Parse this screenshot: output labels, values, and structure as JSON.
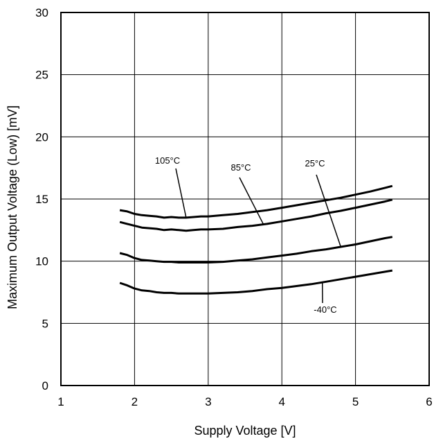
{
  "chart_data": {
    "type": "line",
    "xlabel": "Supply Voltage [V]",
    "ylabel": "Maximum Output Voltage (Low) [mV]",
    "xlim": [
      1,
      6
    ],
    "ylim": [
      0,
      30
    ],
    "x_ticks": [
      "1",
      "2",
      "3",
      "4",
      "5",
      "6"
    ],
    "y_ticks": [
      "0",
      "5",
      "10",
      "15",
      "20",
      "25",
      "30"
    ],
    "grid": true,
    "series": [
      {
        "name": "105°C",
        "x": [
          1.8,
          1.9,
          2.0,
          2.1,
          2.2,
          2.3,
          2.4,
          2.5,
          2.6,
          2.7,
          2.8,
          2.9,
          3.0,
          3.2,
          3.4,
          3.6,
          3.8,
          4.0,
          4.2,
          4.4,
          4.6,
          4.8,
          5.0,
          5.2,
          5.4,
          5.5
        ],
        "y": [
          14.1,
          14.0,
          13.8,
          13.7,
          13.65,
          13.6,
          13.5,
          13.55,
          13.5,
          13.5,
          13.55,
          13.6,
          13.6,
          13.7,
          13.8,
          13.95,
          14.1,
          14.3,
          14.5,
          14.7,
          14.9,
          15.1,
          15.35,
          15.6,
          15.9,
          16.05
        ]
      },
      {
        "name": "85°C",
        "x": [
          1.8,
          1.9,
          2.0,
          2.1,
          2.2,
          2.3,
          2.4,
          2.5,
          2.6,
          2.7,
          2.8,
          2.9,
          3.0,
          3.2,
          3.4,
          3.6,
          3.8,
          4.0,
          4.2,
          4.4,
          4.6,
          4.8,
          5.0,
          5.2,
          5.4,
          5.5
        ],
        "y": [
          13.15,
          13.0,
          12.85,
          12.7,
          12.65,
          12.6,
          12.5,
          12.55,
          12.5,
          12.45,
          12.5,
          12.55,
          12.55,
          12.6,
          12.75,
          12.85,
          13.0,
          13.2,
          13.4,
          13.6,
          13.85,
          14.05,
          14.3,
          14.55,
          14.8,
          14.95
        ]
      },
      {
        "name": "25°C",
        "x": [
          1.8,
          1.9,
          2.0,
          2.1,
          2.2,
          2.3,
          2.4,
          2.5,
          2.6,
          2.7,
          2.8,
          2.9,
          3.0,
          3.2,
          3.4,
          3.6,
          3.8,
          4.0,
          4.2,
          4.4,
          4.6,
          4.8,
          5.0,
          5.2,
          5.4,
          5.5
        ],
        "y": [
          10.65,
          10.5,
          10.25,
          10.1,
          10.05,
          10.0,
          9.95,
          9.95,
          9.9,
          9.9,
          9.9,
          9.9,
          9.9,
          9.95,
          10.05,
          10.15,
          10.3,
          10.45,
          10.6,
          10.8,
          10.95,
          11.15,
          11.35,
          11.6,
          11.85,
          11.95
        ]
      },
      {
        "name": "-40°C",
        "x": [
          1.8,
          1.9,
          2.0,
          2.1,
          2.2,
          2.3,
          2.4,
          2.5,
          2.6,
          2.7,
          2.8,
          2.9,
          3.0,
          3.2,
          3.4,
          3.6,
          3.8,
          4.0,
          4.2,
          4.4,
          4.6,
          4.8,
          5.0,
          5.2,
          5.4,
          5.5
        ],
        "y": [
          8.25,
          8.05,
          7.8,
          7.65,
          7.6,
          7.5,
          7.45,
          7.45,
          7.4,
          7.4,
          7.4,
          7.4,
          7.4,
          7.45,
          7.5,
          7.6,
          7.75,
          7.85,
          8.0,
          8.15,
          8.35,
          8.55,
          8.75,
          8.95,
          9.15,
          9.25
        ]
      }
    ]
  }
}
